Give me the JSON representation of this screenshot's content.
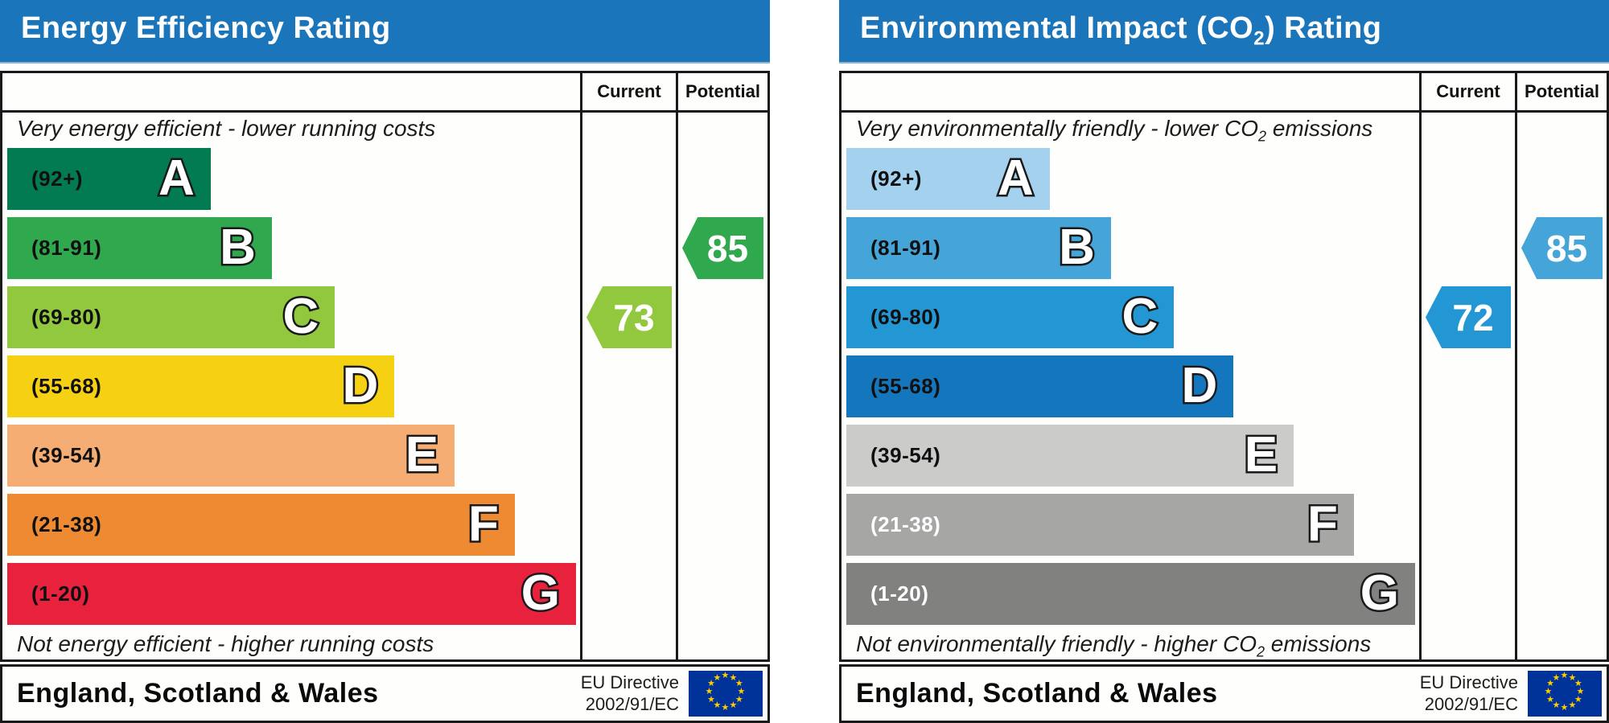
{
  "charts": [
    {
      "id": "energy-efficiency",
      "title": {
        "pre": "Energy Efficiency Rating",
        "sub": "",
        "post": ""
      },
      "title_bar_color": "#1b75ba",
      "header": {
        "current_label": "Current",
        "potential_label": "Potential"
      },
      "captions": {
        "top": {
          "pre": "Very energy efficient - lower running costs",
          "sub": "",
          "post": ""
        },
        "bottom": {
          "pre": "Not energy efficient - higher running costs",
          "sub": "",
          "post": ""
        }
      },
      "bands": [
        {
          "letter": "A",
          "range": "(92+)",
          "color": "#027b52",
          "width_pct": 35.5,
          "range_color": "#101010"
        },
        {
          "letter": "B",
          "range": "(81-91)",
          "color": "#2fa84e",
          "width_pct": 46.2,
          "range_color": "#101010"
        },
        {
          "letter": "C",
          "range": "(69-80)",
          "color": "#92c83e",
          "width_pct": 57.2,
          "range_color": "#101010"
        },
        {
          "letter": "D",
          "range": "(55-68)",
          "color": "#f6d013",
          "width_pct": 67.6,
          "range_color": "#101010"
        },
        {
          "letter": "E",
          "range": "(39-54)",
          "color": "#f5ad74",
          "width_pct": 78.1,
          "range_color": "#101010"
        },
        {
          "letter": "F",
          "range": "(21-38)",
          "color": "#ee8a32",
          "width_pct": 88.6,
          "range_color": "#101010"
        },
        {
          "letter": "G",
          "range": "(1-20)",
          "color": "#e8213c",
          "width_pct": 99.3,
          "range_color": "#101010"
        }
      ],
      "current": {
        "value": "73",
        "color": "#92c83e",
        "band_index": 2
      },
      "potential": {
        "value": "85",
        "color": "#2fa84e",
        "band_index": 1
      },
      "footer": {
        "region": "England, Scotland & Wales",
        "directive_line1": "EU Directive",
        "directive_line2": "2002/91/EC"
      }
    },
    {
      "id": "environmental-impact",
      "title": {
        "pre": "Environmental Impact (CO",
        "sub": "2",
        "post": ") Rating"
      },
      "title_bar_color": "#1b75ba",
      "header": {
        "current_label": "Current",
        "potential_label": "Potential"
      },
      "captions": {
        "top": {
          "pre": "Very environmentally friendly - lower CO",
          "sub": "2",
          "post": " emissions"
        },
        "bottom": {
          "pre": "Not environmentally friendly - higher CO",
          "sub": "2",
          "post": " emissions"
        }
      },
      "bands": [
        {
          "letter": "A",
          "range": "(92+)",
          "color": "#a4d2ee",
          "width_pct": 35.5,
          "range_color": "#101010"
        },
        {
          "letter": "B",
          "range": "(81-91)",
          "color": "#46a5d8",
          "width_pct": 46.2,
          "range_color": "#101010"
        },
        {
          "letter": "C",
          "range": "(69-80)",
          "color": "#2397d4",
          "width_pct": 57.2,
          "range_color": "#101010"
        },
        {
          "letter": "D",
          "range": "(55-68)",
          "color": "#1477bd",
          "width_pct": 67.6,
          "range_color": "#101010"
        },
        {
          "letter": "E",
          "range": "(39-54)",
          "color": "#cbcbca",
          "width_pct": 78.1,
          "range_color": "#101010"
        },
        {
          "letter": "F",
          "range": "(21-38)",
          "color": "#a6a6a5",
          "width_pct": 88.6,
          "range_color": "#ffffff"
        },
        {
          "letter": "G",
          "range": "(1-20)",
          "color": "#818180",
          "width_pct": 99.3,
          "range_color": "#ffffff"
        }
      ],
      "current": {
        "value": "72",
        "color": "#2397d4",
        "band_index": 2
      },
      "potential": {
        "value": "85",
        "color": "#46a5d8",
        "band_index": 1
      },
      "footer": {
        "region": "England, Scotland & Wales",
        "directive_line1": "EU Directive",
        "directive_line2": "2002/91/EC"
      }
    }
  ],
  "eu_flag": {
    "background": "#003399",
    "star_color": "#ffcc00",
    "star_count": 12
  },
  "chart_data": [
    {
      "type": "bar",
      "orientation": "horizontal",
      "title": "Energy Efficiency Rating",
      "scale": [
        {
          "band": "A",
          "range": "92+"
        },
        {
          "band": "B",
          "range": "81-91"
        },
        {
          "band": "C",
          "range": "69-80"
        },
        {
          "band": "D",
          "range": "55-68"
        },
        {
          "band": "E",
          "range": "39-54"
        },
        {
          "band": "F",
          "range": "21-38"
        },
        {
          "band": "G",
          "range": "1-20"
        }
      ],
      "current": 73,
      "current_band": "C",
      "potential": 85,
      "potential_band": "B",
      "top_caption": "Very energy efficient - lower running costs",
      "bottom_caption": "Not energy efficient - higher running costs",
      "region": "England, Scotland & Wales",
      "directive": "EU Directive 2002/91/EC"
    },
    {
      "type": "bar",
      "orientation": "horizontal",
      "title": "Environmental Impact (CO2) Rating",
      "scale": [
        {
          "band": "A",
          "range": "92+"
        },
        {
          "band": "B",
          "range": "81-91"
        },
        {
          "band": "C",
          "range": "69-80"
        },
        {
          "band": "D",
          "range": "55-68"
        },
        {
          "band": "E",
          "range": "39-54"
        },
        {
          "band": "F",
          "range": "21-38"
        },
        {
          "band": "G",
          "range": "1-20"
        }
      ],
      "current": 72,
      "current_band": "C",
      "potential": 85,
      "potential_band": "B",
      "top_caption": "Very environmentally friendly - lower CO2 emissions",
      "bottom_caption": "Not environmentally friendly - higher CO2 emissions",
      "region": "England, Scotland & Wales",
      "directive": "EU Directive 2002/91/EC"
    }
  ]
}
